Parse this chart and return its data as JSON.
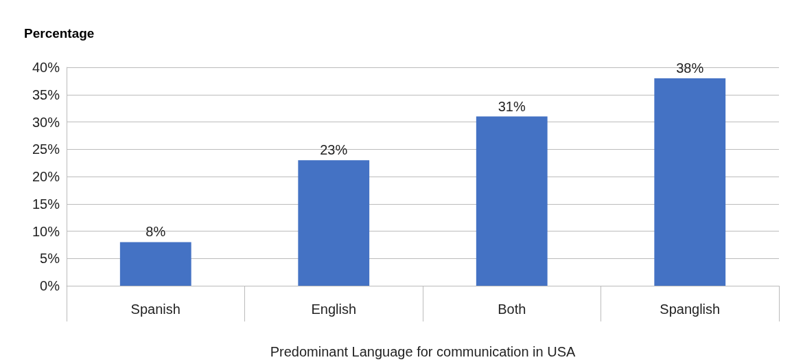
{
  "chart_data": {
    "type": "bar",
    "ylabel": "Percentage",
    "xlabel": "Predominant Language for communication in USA",
    "categories": [
      "Spanish",
      "English",
      "Both",
      "Spanglish"
    ],
    "values": [
      8,
      23,
      31,
      38
    ],
    "value_labels": [
      "8%",
      "23%",
      "31%",
      "38%"
    ],
    "color": "#4472c4",
    "ylim": [
      0,
      40
    ],
    "yticks": [
      {
        "value": 0,
        "label": "0%"
      },
      {
        "value": 5,
        "label": "5%"
      },
      {
        "value": 10,
        "label": "10%"
      },
      {
        "value": 15,
        "label": "15%"
      },
      {
        "value": 20,
        "label": "20%"
      },
      {
        "value": 25,
        "label": "25%"
      },
      {
        "value": 30,
        "label": "30%"
      },
      {
        "value": 35,
        "label": "35%"
      },
      {
        "value": 40,
        "label": "40%"
      }
    ],
    "grid": "y"
  }
}
